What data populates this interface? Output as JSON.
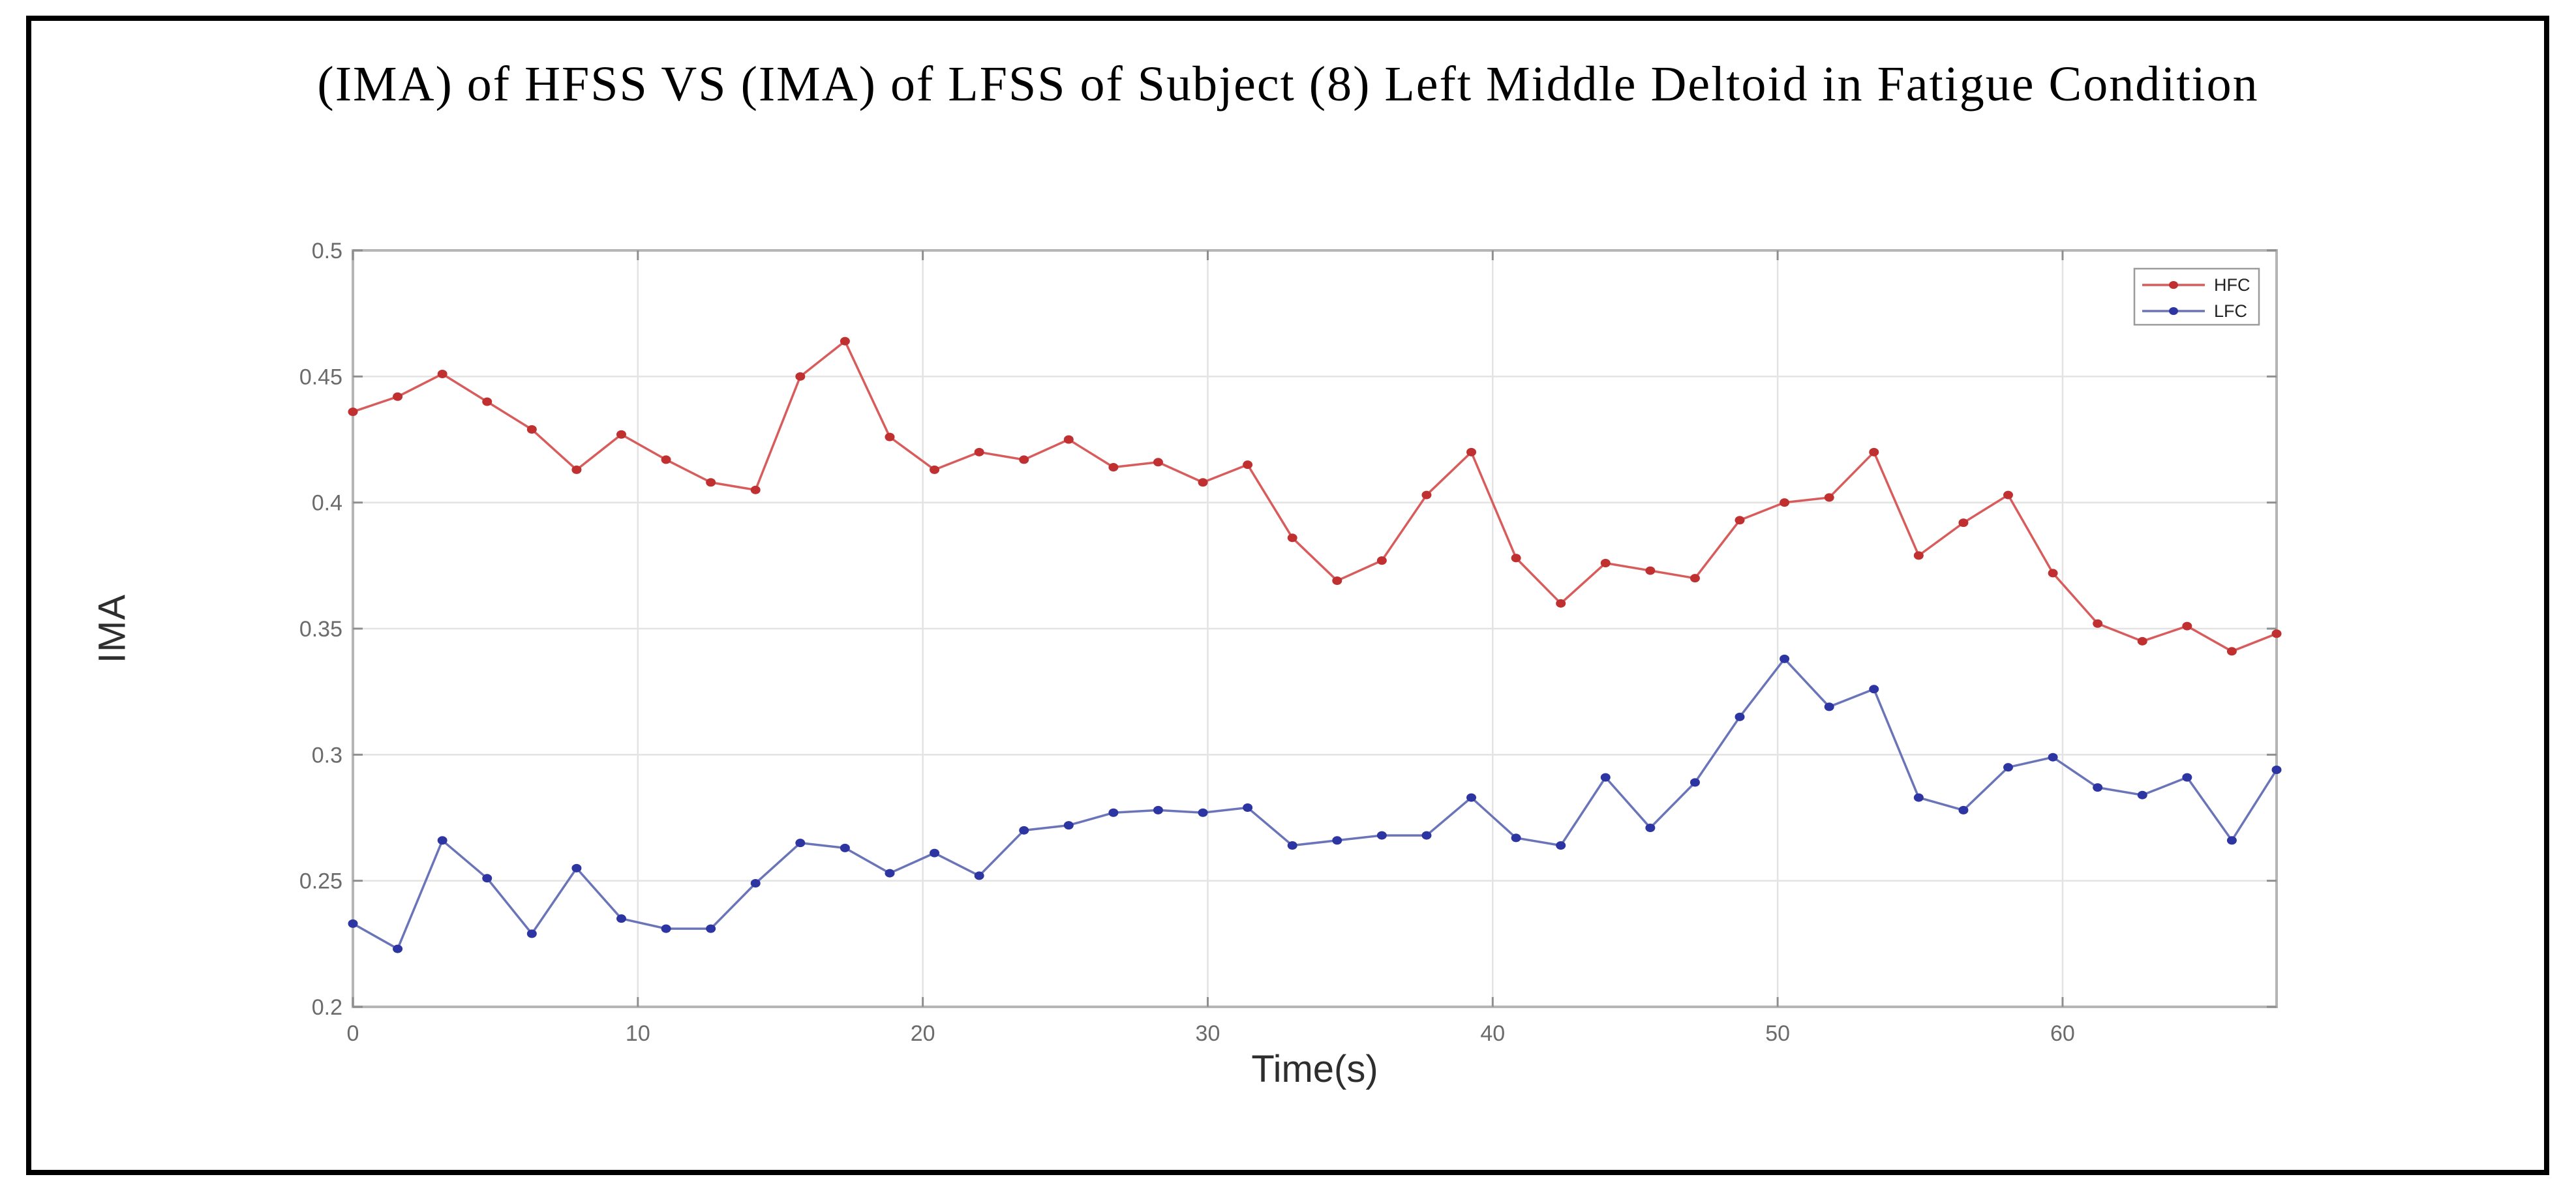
{
  "figure": {
    "border_color": "#000000",
    "background": "#ffffff"
  },
  "chart_data": {
    "type": "line",
    "title": "(IMA) of HFSS VS (IMA) of LFSS of Subject (8) Left Middle Deltoid in Fatigue Condition",
    "xlabel": "Time(s)",
    "ylabel": "IMA",
    "xlim": [
      0,
      67.51
    ],
    "ylim": [
      0.2,
      0.5
    ],
    "xticks": [
      0,
      10,
      20,
      30,
      40,
      50,
      60
    ],
    "xtick_labels": [
      "0",
      "10",
      "20",
      "30",
      "40",
      "50",
      "60"
    ],
    "yticks": [
      0.2,
      0.25,
      0.3,
      0.35,
      0.4,
      0.45,
      0.5
    ],
    "ytick_labels": [
      "0.2",
      "0.25",
      "0.3",
      "0.35",
      "0.4",
      "0.45",
      "0.5"
    ],
    "grid": true,
    "legend_position": "top-right",
    "axis_color": "#b5b5b5",
    "grid_color": "#e3e3e3",
    "tick_color": "#8f8f8f",
    "tick_label_color": "#6b6b6b",
    "x": [
      0,
      1.57,
      3.14,
      4.71,
      6.28,
      7.85,
      9.42,
      10.99,
      12.56,
      14.13,
      15.7,
      17.27,
      18.84,
      20.41,
      21.98,
      23.55,
      25.12,
      26.69,
      28.26,
      29.83,
      31.4,
      32.97,
      34.54,
      36.11,
      37.68,
      39.25,
      40.82,
      42.39,
      43.96,
      45.53,
      47.1,
      48.67,
      50.24,
      51.81,
      53.38,
      54.95,
      56.52,
      58.09,
      59.66,
      61.23,
      62.8,
      64.37,
      65.94,
      67.51
    ],
    "series": [
      {
        "name": "HFC",
        "line_color": "#d85c5c",
        "marker_color": "#c13030",
        "marker": "filled-dot",
        "values": [
          0.436,
          0.442,
          0.451,
          0.44,
          0.429,
          0.413,
          0.427,
          0.417,
          0.408,
          0.405,
          0.45,
          0.464,
          0.426,
          0.413,
          0.42,
          0.417,
          0.425,
          0.414,
          0.416,
          0.408,
          0.415,
          0.386,
          0.369,
          0.377,
          0.403,
          0.42,
          0.378,
          0.36,
          0.376,
          0.373,
          0.37,
          0.393,
          0.4,
          0.402,
          0.42,
          0.379,
          0.392,
          0.403,
          0.372,
          0.352,
          0.345,
          0.351,
          0.341,
          0.348
        ]
      },
      {
        "name": "LFC",
        "line_color": "#6a74b8",
        "marker_color": "#2d35a3",
        "marker": "filled-dot",
        "values": [
          0.233,
          0.223,
          0.266,
          0.251,
          0.229,
          0.255,
          0.235,
          0.231,
          0.231,
          0.249,
          0.265,
          0.263,
          0.253,
          0.261,
          0.252,
          0.27,
          0.272,
          0.277,
          0.278,
          0.277,
          0.279,
          0.264,
          0.266,
          0.268,
          0.268,
          0.283,
          0.267,
          0.264,
          0.291,
          0.271,
          0.289,
          0.315,
          0.338,
          0.319,
          0.326,
          0.283,
          0.278,
          0.295,
          0.299,
          0.287,
          0.284,
          0.291,
          0.266,
          0.294
        ]
      }
    ]
  }
}
